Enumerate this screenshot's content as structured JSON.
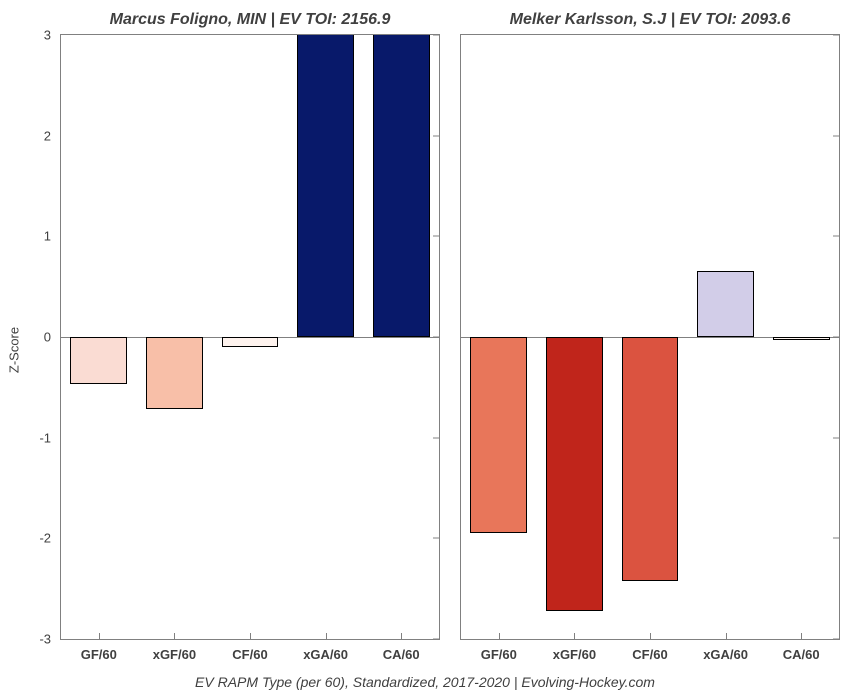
{
  "chart": {
    "type": "bar",
    "ylim": [
      -3,
      3
    ],
    "yticks": [
      -3,
      -2,
      -1,
      0,
      1,
      2,
      3
    ],
    "categories": [
      "GF/60",
      "xGF/60",
      "CF/60",
      "xGA/60",
      "CA/60"
    ],
    "bar_width": 0.75,
    "border_color": "#000000",
    "axis_color": "#808080",
    "background_color": "#ffffff",
    "title_fontsize": 16,
    "ytick_fontsize": 13,
    "xtick_fontsize": 13,
    "ylabel_fontsize": 13,
    "footer_fontsize": 14,
    "text_color": "#404040",
    "ylabel": "Z-Score",
    "footer": "EV RAPM Type (per 60), Standardized, 2017-2020    |    Evolving-Hockey.com",
    "panels": [
      {
        "title": "Marcus Foligno, MIN  |  EV TOI: 2156.9",
        "show_yticks": true,
        "values": [
          -0.47,
          -0.72,
          -0.1,
          3.4,
          3.35
        ],
        "colors": [
          "#fadcd3",
          "#f8bfa8",
          "#fef3ee",
          "#08196a",
          "#08196a"
        ]
      },
      {
        "title": "Melker Karlsson, S.J  |  EV TOI: 2093.6",
        "show_yticks": false,
        "values": [
          -1.95,
          -2.72,
          -2.42,
          0.66,
          -0.03
        ],
        "colors": [
          "#e8765a",
          "#c0251b",
          "#db5340",
          "#d2cde8",
          "#fdf4ef"
        ]
      }
    ]
  }
}
